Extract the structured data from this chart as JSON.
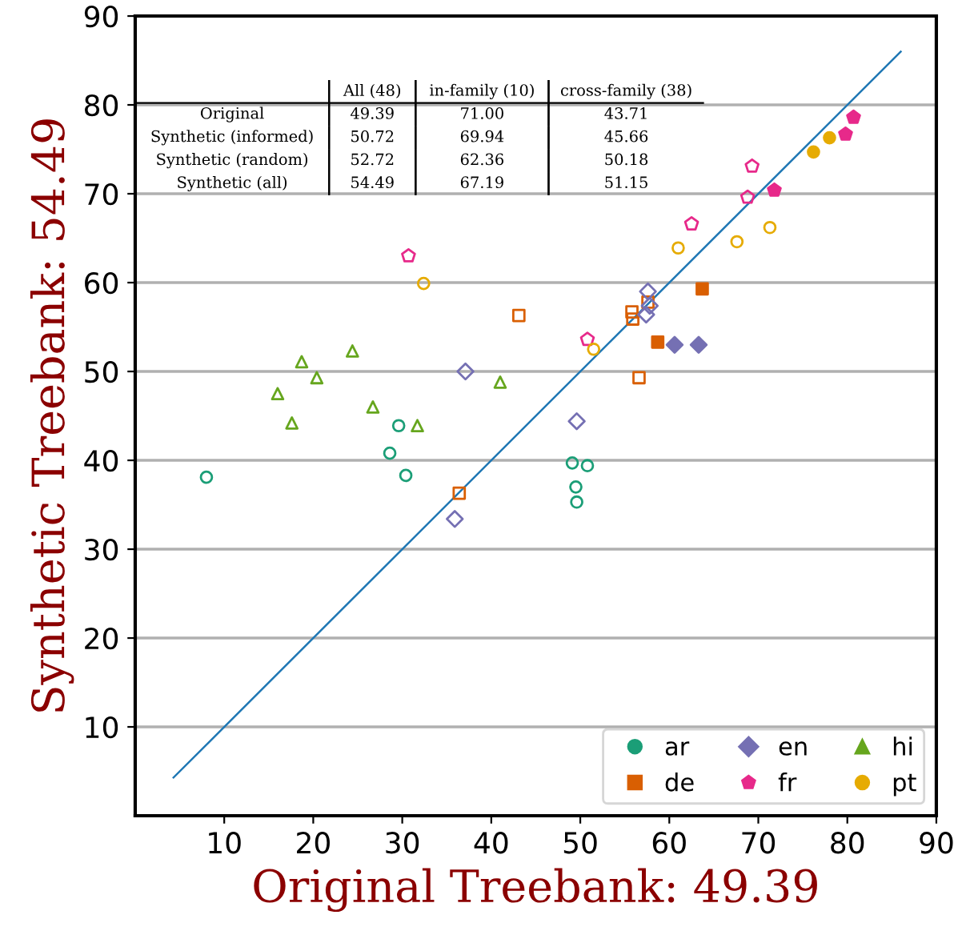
{
  "chart_data": {
    "type": "scatter",
    "xlabel": "Original Treebank: 49.39",
    "ylabel": "Synthetic Treebank: 54.49",
    "xlim": [
      0,
      90
    ],
    "ylim": [
      0,
      90
    ],
    "xticks": [
      10,
      20,
      30,
      40,
      50,
      60,
      70,
      80,
      90
    ],
    "yticks": [
      10,
      20,
      30,
      40,
      50,
      60,
      70,
      80,
      90
    ],
    "grid": "y",
    "legend": "bottom right",
    "annotations": [
      "All (48)",
      "in-family (10)",
      "cross-family (38)",
      "Original",
      "49.39",
      "71.00",
      "43.71",
      "Synthetic (informed)",
      "50.72",
      "69.94",
      "45.66",
      "Synthetic (random)",
      "52.72",
      "62.36",
      "50.18",
      "Synthetic (all)",
      "54.49",
      "67.19",
      "51.15"
    ],
    "series": [
      {
        "type": "line",
        "color": "#1f77b4",
        "x": [
          4.3,
          86
        ],
        "values": [
          4.3,
          86
        ],
        "marker": "none"
      },
      {
        "name": "ar",
        "color": "#1b9e77",
        "marker": "circle",
        "x": [
          8.0,
          29.6,
          28.6,
          30.4,
          49.1,
          50.8,
          49.5,
          49.6
        ],
        "values": [
          38.1,
          43.9,
          40.8,
          38.3,
          39.7,
          39.4,
          37.0,
          35.3
        ]
      },
      {
        "name": "de",
        "color": "#d95f02",
        "colors": [
          "#d95f02",
          "#d95f02"
        ],
        "marker": "square",
        "x": [
          63.7,
          58.7
        ],
        "values": [
          59.3,
          53.3
        ]
      },
      {
        "color": "#d95f02",
        "marker": "square",
        "x": [
          43.1,
          36.4,
          55.8,
          55.9,
          57.6,
          56.6
        ],
        "values": [
          56.3,
          36.3,
          56.7,
          55.9,
          57.8,
          49.3
        ]
      },
      {
        "name": "en",
        "color": "#7570b3",
        "colors": [
          "#7570b3",
          "#7570b3"
        ],
        "marker": "diamond",
        "x": [
          60.6,
          63.3
        ],
        "values": [
          53.0,
          53.0
        ]
      },
      {
        "color": "#7570b3",
        "marker": "diamond",
        "x": [
          37.1,
          35.9,
          57.6,
          57.8,
          57.4,
          49.6
        ],
        "values": [
          50.0,
          33.4,
          59.0,
          57.4,
          56.4,
          44.4
        ]
      },
      {
        "name": "fr",
        "color": "#e7298a",
        "colors": [
          "#e7298a",
          "#e7298a",
          "#e7298a"
        ],
        "x": [
          71.8,
          79.8,
          80.7
        ],
        "values": [
          70.4,
          76.7,
          78.6
        ]
      },
      {
        "color": "#e7298a",
        "x": [
          30.7,
          50.8,
          62.5,
          69.3,
          68.8
        ],
        "values": [
          63.0,
          53.6,
          66.6,
          73.1,
          69.6
        ]
      },
      {
        "name": "hi",
        "color": "#66a61e",
        "marker": "triangle",
        "x": [
          18.7,
          24.4,
          20.4,
          16.0,
          26.7,
          17.6,
          31.7,
          41.0
        ],
        "values": [
          51.1,
          52.3,
          49.3,
          47.5,
          46.0,
          44.2,
          43.9,
          48.8
        ]
      },
      {
        "name": "pt",
        "color": "#e6ab02",
        "colors": [
          "#e6ab02",
          "#e6ab02"
        ],
        "marker": "circle",
        "x": [
          76.2,
          78.0
        ],
        "values": [
          74.7,
          76.3
        ]
      },
      {
        "color": "#e6ab02",
        "marker": "circle",
        "x": [
          32.4,
          51.5,
          61.0,
          67.6,
          71.3
        ],
        "values": [
          59.9,
          52.5,
          63.9,
          64.6,
          66.2
        ]
      }
    ]
  }
}
